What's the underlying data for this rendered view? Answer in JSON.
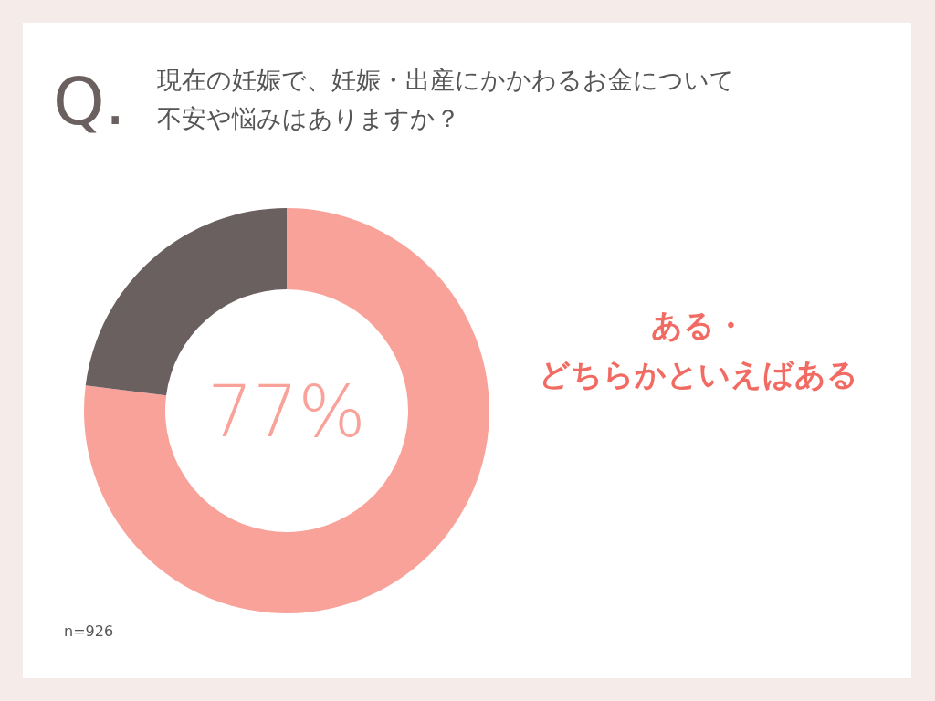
{
  "chart_data": {
    "type": "donut",
    "title": "現在の妊娠で、妊娠・出産にかかわるお金について不安や悩みはありますか？",
    "categories": [
      "ある・どちらかといえばある",
      null
    ],
    "values": [
      77,
      23
    ],
    "colors": [
      "#f9a29a",
      "#6b6060"
    ],
    "value_labels": [
      "77%",
      null
    ],
    "annotations": [
      "Q.",
      "n=926"
    ]
  }
}
